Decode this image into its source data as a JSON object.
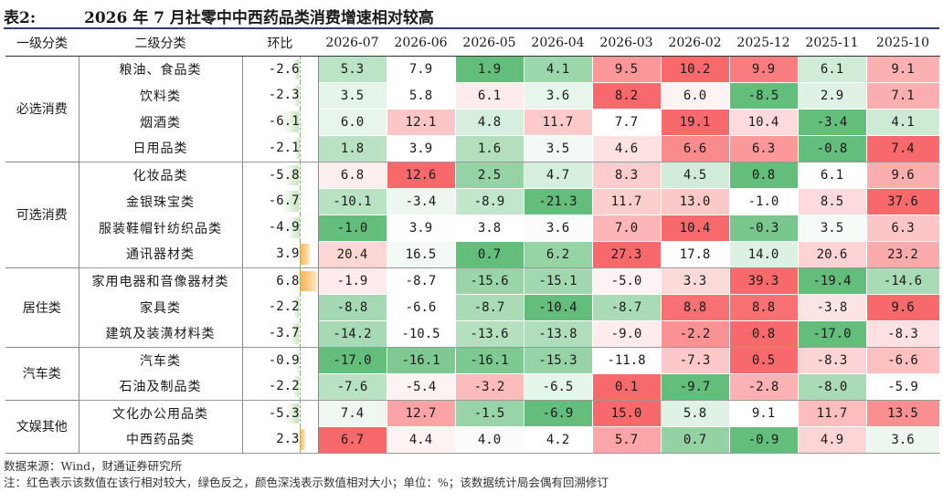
{
  "title": {
    "label": "表2:",
    "text": "2026 年 7 月社零中中西药品类消费增速相对较高"
  },
  "headers": [
    "一级分类",
    "二级分类",
    "环比",
    "2026-07",
    "2026-06",
    "2026-05",
    "2026-04",
    "2026-03",
    "2026-02",
    "2025-12",
    "2025-11",
    "2025-10"
  ],
  "groups": [
    {
      "name": "必选消费",
      "rows": [
        {
          "name": "粮油、食品类",
          "mom": "-2.6",
          "mom_value": -2.6,
          "values": [
            "5.3",
            "7.9",
            "1.9",
            "4.1",
            "9.5",
            "10.2",
            "9.9",
            "6.1",
            "9.1"
          ]
        },
        {
          "name": "饮料类",
          "mom": "-2.3",
          "mom_value": -2.3,
          "values": [
            "3.5",
            "5.8",
            "6.1",
            "3.6",
            "8.2",
            "6.0",
            "-8.5",
            "2.9",
            "7.1"
          ]
        },
        {
          "name": "烟酒类",
          "mom": "-6.1",
          "mom_value": -6.1,
          "values": [
            "6.0",
            "12.1",
            "4.8",
            "11.7",
            "7.7",
            "19.1",
            "10.4",
            "-3.4",
            "4.1"
          ]
        },
        {
          "name": "日用品类",
          "mom": "-2.1",
          "mom_value": -2.1,
          "values": [
            "1.8",
            "3.9",
            "1.6",
            "3.5",
            "4.6",
            "6.6",
            "6.3",
            "-0.8",
            "7.4"
          ]
        }
      ]
    },
    {
      "name": "可选消费",
      "rows": [
        {
          "name": "化妆品类",
          "mom": "-5.8",
          "mom_value": -5.8,
          "values": [
            "6.8",
            "12.6",
            "2.5",
            "4.7",
            "8.3",
            "4.5",
            "0.8",
            "6.1",
            "9.6"
          ]
        },
        {
          "name": "金银珠宝类",
          "mom": "-6.7",
          "mom_value": -6.7,
          "values": [
            "-10.1",
            "-3.4",
            "-8.9",
            "-21.3",
            "11.7",
            "13.0",
            "-1.0",
            "8.5",
            "37.6"
          ]
        },
        {
          "name": "服装鞋帽针纺织品类",
          "mom": "-4.9",
          "mom_value": -4.9,
          "values": [
            "-1.0",
            "3.9",
            "3.8",
            "3.6",
            "7.0",
            "10.4",
            "-0.3",
            "3.5",
            "6.3"
          ]
        },
        {
          "name": "通讯器材类",
          "mom": "3.9",
          "mom_value": 3.9,
          "values": [
            "20.4",
            "16.5",
            "0.7",
            "6.2",
            "27.3",
            "17.8",
            "14.0",
            "20.6",
            "23.2"
          ]
        }
      ]
    },
    {
      "name": "居住类",
      "rows": [
        {
          "name": "家用电器和音像器材类",
          "mom": "6.8",
          "mom_value": 6.8,
          "values": [
            "-1.9",
            "-8.7",
            "-15.6",
            "-15.1",
            "-5.0",
            "3.3",
            "39.3",
            "-19.4",
            "-14.6"
          ]
        },
        {
          "name": "家具类",
          "mom": "-2.2",
          "mom_value": -2.2,
          "values": [
            "-8.8",
            "-6.6",
            "-8.7",
            "-10.4",
            "-8.7",
            "8.8",
            "8.8",
            "-3.8",
            "9.6"
          ]
        },
        {
          "name": "建筑及装潢材料类",
          "mom": "-3.7",
          "mom_value": -3.7,
          "values": [
            "-14.2",
            "-10.5",
            "-13.6",
            "-13.8",
            "-9.0",
            "-2.2",
            "0.8",
            "-17.0",
            "-8.3"
          ]
        }
      ]
    },
    {
      "name": "汽车类",
      "rows": [
        {
          "name": "汽车类",
          "mom": "-0.9",
          "mom_value": -0.9,
          "values": [
            "-17.0",
            "-16.1",
            "-16.1",
            "-15.3",
            "-11.8",
            "-7.3",
            "0.5",
            "-8.3",
            "-6.6"
          ]
        },
        {
          "name": "石油及制品类",
          "mom": "-2.2",
          "mom_value": -2.2,
          "values": [
            "-7.6",
            "-5.4",
            "-3.2",
            "-6.5",
            "0.1",
            "-9.7",
            "-2.8",
            "-8.0",
            "-5.9"
          ]
        }
      ]
    },
    {
      "name": "文娱其他",
      "rows": [
        {
          "name": "文化办公用品类",
          "mom": "-5.3",
          "mom_value": -5.3,
          "values": [
            "7.4",
            "12.7",
            "-1.5",
            "-6.9",
            "15.0",
            "5.8",
            "9.1",
            "11.7",
            "13.5"
          ]
        },
        {
          "name": "中西药品类",
          "mom": "2.3",
          "mom_value": 2.3,
          "values": [
            "6.7",
            "4.4",
            "4.0",
            "4.2",
            "5.7",
            "0.7",
            "-0.9",
            "4.9",
            "3.6"
          ]
        }
      ]
    }
  ],
  "footnotes": {
    "source": "数据来源：Wind，财通证券研究所",
    "note": "注：红色表示该数值在该行相对较大，绿色反之，颜色深浅表示数值相对大小；单位：%；该数据统计局会偶有回溯修订"
  },
  "colors": {
    "high": "#f8696b",
    "mid": "#ffffff",
    "low": "#63be7b",
    "bar_pos": "#fbb14a",
    "bar_neg": "#c9e4c0",
    "title_rule": "#2f3f6f"
  }
}
